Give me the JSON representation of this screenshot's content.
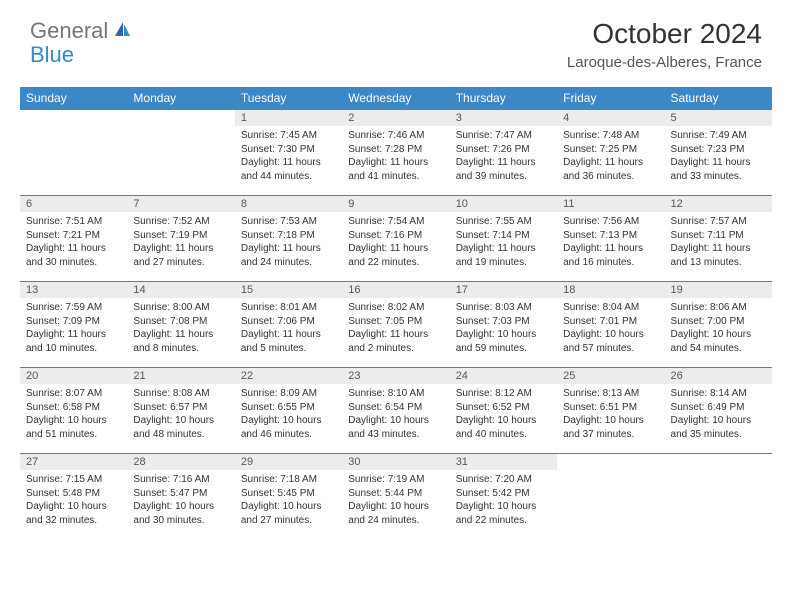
{
  "logo": {
    "part1": "General",
    "part2": "Blue"
  },
  "title": "October 2024",
  "location": "Laroque-des-Alberes, France",
  "colors": {
    "header_bg": "#3b87c7",
    "header_text": "#ffffff",
    "daynum_bg": "#ececec",
    "row_border": "#3b87c7",
    "logo_gray": "#777777",
    "logo_blue": "#3b87c7"
  },
  "weekdays": [
    "Sunday",
    "Monday",
    "Tuesday",
    "Wednesday",
    "Thursday",
    "Friday",
    "Saturday"
  ],
  "weeks": [
    [
      null,
      null,
      {
        "n": "1",
        "sr": "7:45 AM",
        "ss": "7:30 PM",
        "dl": "11 hours and 44 minutes."
      },
      {
        "n": "2",
        "sr": "7:46 AM",
        "ss": "7:28 PM",
        "dl": "11 hours and 41 minutes."
      },
      {
        "n": "3",
        "sr": "7:47 AM",
        "ss": "7:26 PM",
        "dl": "11 hours and 39 minutes."
      },
      {
        "n": "4",
        "sr": "7:48 AM",
        "ss": "7:25 PM",
        "dl": "11 hours and 36 minutes."
      },
      {
        "n": "5",
        "sr": "7:49 AM",
        "ss": "7:23 PM",
        "dl": "11 hours and 33 minutes."
      }
    ],
    [
      {
        "n": "6",
        "sr": "7:51 AM",
        "ss": "7:21 PM",
        "dl": "11 hours and 30 minutes."
      },
      {
        "n": "7",
        "sr": "7:52 AM",
        "ss": "7:19 PM",
        "dl": "11 hours and 27 minutes."
      },
      {
        "n": "8",
        "sr": "7:53 AM",
        "ss": "7:18 PM",
        "dl": "11 hours and 24 minutes."
      },
      {
        "n": "9",
        "sr": "7:54 AM",
        "ss": "7:16 PM",
        "dl": "11 hours and 22 minutes."
      },
      {
        "n": "10",
        "sr": "7:55 AM",
        "ss": "7:14 PM",
        "dl": "11 hours and 19 minutes."
      },
      {
        "n": "11",
        "sr": "7:56 AM",
        "ss": "7:13 PM",
        "dl": "11 hours and 16 minutes."
      },
      {
        "n": "12",
        "sr": "7:57 AM",
        "ss": "7:11 PM",
        "dl": "11 hours and 13 minutes."
      }
    ],
    [
      {
        "n": "13",
        "sr": "7:59 AM",
        "ss": "7:09 PM",
        "dl": "11 hours and 10 minutes."
      },
      {
        "n": "14",
        "sr": "8:00 AM",
        "ss": "7:08 PM",
        "dl": "11 hours and 8 minutes."
      },
      {
        "n": "15",
        "sr": "8:01 AM",
        "ss": "7:06 PM",
        "dl": "11 hours and 5 minutes."
      },
      {
        "n": "16",
        "sr": "8:02 AM",
        "ss": "7:05 PM",
        "dl": "11 hours and 2 minutes."
      },
      {
        "n": "17",
        "sr": "8:03 AM",
        "ss": "7:03 PM",
        "dl": "10 hours and 59 minutes."
      },
      {
        "n": "18",
        "sr": "8:04 AM",
        "ss": "7:01 PM",
        "dl": "10 hours and 57 minutes."
      },
      {
        "n": "19",
        "sr": "8:06 AM",
        "ss": "7:00 PM",
        "dl": "10 hours and 54 minutes."
      }
    ],
    [
      {
        "n": "20",
        "sr": "8:07 AM",
        "ss": "6:58 PM",
        "dl": "10 hours and 51 minutes."
      },
      {
        "n": "21",
        "sr": "8:08 AM",
        "ss": "6:57 PM",
        "dl": "10 hours and 48 minutes."
      },
      {
        "n": "22",
        "sr": "8:09 AM",
        "ss": "6:55 PM",
        "dl": "10 hours and 46 minutes."
      },
      {
        "n": "23",
        "sr": "8:10 AM",
        "ss": "6:54 PM",
        "dl": "10 hours and 43 minutes."
      },
      {
        "n": "24",
        "sr": "8:12 AM",
        "ss": "6:52 PM",
        "dl": "10 hours and 40 minutes."
      },
      {
        "n": "25",
        "sr": "8:13 AM",
        "ss": "6:51 PM",
        "dl": "10 hours and 37 minutes."
      },
      {
        "n": "26",
        "sr": "8:14 AM",
        "ss": "6:49 PM",
        "dl": "10 hours and 35 minutes."
      }
    ],
    [
      {
        "n": "27",
        "sr": "7:15 AM",
        "ss": "5:48 PM",
        "dl": "10 hours and 32 minutes."
      },
      {
        "n": "28",
        "sr": "7:16 AM",
        "ss": "5:47 PM",
        "dl": "10 hours and 30 minutes."
      },
      {
        "n": "29",
        "sr": "7:18 AM",
        "ss": "5:45 PM",
        "dl": "10 hours and 27 minutes."
      },
      {
        "n": "30",
        "sr": "7:19 AM",
        "ss": "5:44 PM",
        "dl": "10 hours and 24 minutes."
      },
      {
        "n": "31",
        "sr": "7:20 AM",
        "ss": "5:42 PM",
        "dl": "10 hours and 22 minutes."
      },
      null,
      null
    ]
  ],
  "labels": {
    "sunrise": "Sunrise:",
    "sunset": "Sunset:",
    "daylight": "Daylight:"
  }
}
